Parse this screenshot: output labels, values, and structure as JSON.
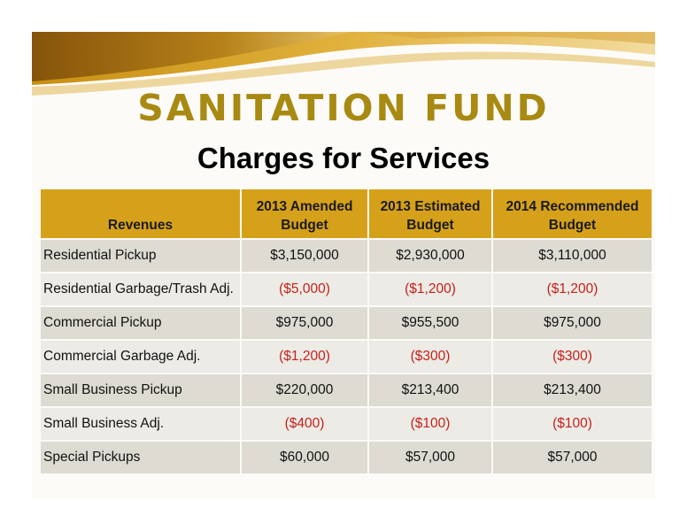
{
  "title": "SANITATION FUND",
  "subtitle": "Charges for Services",
  "table": {
    "headers": [
      [
        "",
        "Revenues"
      ],
      [
        "2013 Amended",
        "Budget"
      ],
      [
        "2013 Estimated",
        "Budget"
      ],
      [
        "2014 Recommended",
        "Budget"
      ]
    ],
    "rows": [
      {
        "name": "Residential Pickup",
        "amended": "$3,150,000",
        "estimated": "$2,930,000",
        "recommended": "$3,110,000"
      },
      {
        "name": "Residential Garbage/Trash Adj.",
        "amended": "($5,000)",
        "estimated": "($1,200)",
        "recommended": "($1,200)"
      },
      {
        "name": "Commercial Pickup",
        "amended": "$975,000",
        "estimated": "$955,500",
        "recommended": "$975,000"
      },
      {
        "name": "Commercial Garbage Adj.",
        "amended": "($1,200)",
        "estimated": "($300)",
        "recommended": "($300)"
      },
      {
        "name": "Small Business Pickup",
        "amended": "$220,000",
        "estimated": "$213,400",
        "recommended": "$213,400"
      },
      {
        "name": "Small Business Adj.",
        "amended": "($400)",
        "estimated": "($100)",
        "recommended": "($100)"
      },
      {
        "name": "Special Pickups",
        "amended": "$60,000",
        "estimated": "$57,000",
        "recommended": "$57,000"
      }
    ]
  },
  "colors": {
    "title": "#a88a12",
    "header_bg": "#d6a11a",
    "negative": "#c8201a"
  }
}
